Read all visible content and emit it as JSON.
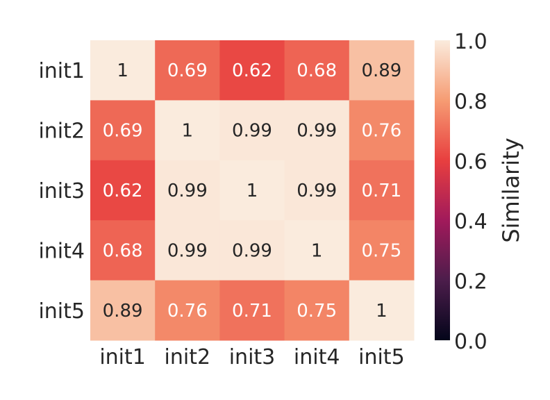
{
  "chart_data": {
    "type": "heatmap",
    "row_labels": [
      "init1",
      "init2",
      "init3",
      "init4",
      "init5"
    ],
    "col_labels": [
      "init1",
      "init2",
      "init3",
      "init4",
      "init5"
    ],
    "values": [
      [
        1.0,
        0.69,
        0.62,
        0.68,
        0.89
      ],
      [
        0.69,
        1.0,
        0.99,
        0.99,
        0.76
      ],
      [
        0.62,
        0.99,
        1.0,
        0.99,
        0.71
      ],
      [
        0.68,
        0.99,
        0.99,
        1.0,
        0.75
      ],
      [
        0.89,
        0.76,
        0.71,
        0.75,
        1.0
      ]
    ],
    "annotations": [
      [
        "1",
        "0.69",
        "0.62",
        "0.68",
        "0.89"
      ],
      [
        "0.69",
        "1",
        "0.99",
        "0.99",
        "0.76"
      ],
      [
        "0.62",
        "0.99",
        "1",
        "0.99",
        "0.71"
      ],
      [
        "0.68",
        "0.99",
        "0.99",
        "1",
        "0.75"
      ],
      [
        "0.89",
        "0.76",
        "0.71",
        "0.75",
        "1"
      ]
    ],
    "colorbar": {
      "label": "Similarity",
      "range": [
        0.0,
        1.0
      ],
      "ticks": [
        "0.0",
        "0.2",
        "0.4",
        "0.6",
        "0.8",
        "1.0"
      ],
      "colormap": "rocket",
      "stops": [
        "#03051a",
        "#4c1d4b",
        "#a11a5b",
        "#e83f3f",
        "#f69c73",
        "#faebdd"
      ]
    }
  }
}
